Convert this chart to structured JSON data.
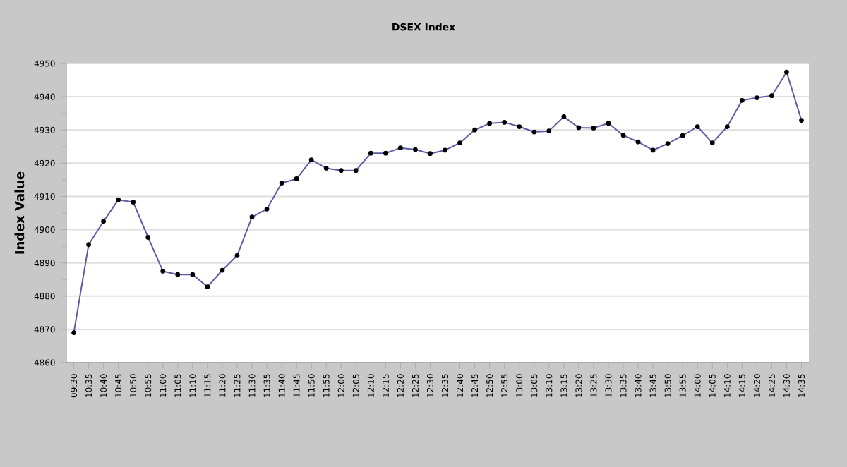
{
  "chart_data": {
    "type": "line",
    "title": "DSEX Index",
    "ylabel": "Index Value",
    "categories": [
      "09:30",
      "10:35",
      "10:40",
      "10:45",
      "10:50",
      "10:55",
      "11:00",
      "11:05",
      "11:10",
      "11:15",
      "11:20",
      "11:25",
      "11:30",
      "11:35",
      "11:40",
      "11:45",
      "11:50",
      "11:55",
      "12:00",
      "12:05",
      "12:10",
      "12:15",
      "12:20",
      "12:25",
      "12:30",
      "12:35",
      "12:40",
      "12:45",
      "12:50",
      "12:55",
      "13:00",
      "13:05",
      "13:10",
      "13:15",
      "13:20",
      "13:25",
      "13:30",
      "13:35",
      "13:40",
      "13:45",
      "13:50",
      "13:55",
      "14:00",
      "14:05",
      "14:10",
      "14:15",
      "14:20",
      "14:25",
      "14:30",
      "14:35"
    ],
    "series": [
      {
        "color": "#5c5ca8",
        "values": [
          4869,
          4895.5,
          4902.5,
          4909,
          4908.3,
          4897.7,
          4887.5,
          4886.5,
          4886.5,
          4882.8,
          4887.8,
          4892.2,
          4903.8,
          4906.2,
          4914,
          4915.3,
          4921,
          4918.5,
          4917.8,
          4917.8,
          4923,
          4923,
          4924.6,
          4924.1,
          4922.9,
          4923.9,
          4926.1,
          4930,
          4932,
          4932.3,
          4931,
          4929.4,
          4929.7,
          4934,
          4930.7,
          4930.6,
          4932,
          4928.4,
          4926.4,
          4923.9,
          4925.9,
          4928.3,
          4931,
          4926.1,
          4931,
          4938.9,
          4939.7,
          4940.3,
          4947.4,
          4932.9
        ]
      }
    ],
    "ylim": [
      4860,
      4950
    ],
    "yticks": [
      4860,
      4870,
      4880,
      4890,
      4900,
      4910,
      4920,
      4930,
      4940,
      4950
    ],
    "grid": "y",
    "marker": "circle",
    "line_style": "solid"
  }
}
